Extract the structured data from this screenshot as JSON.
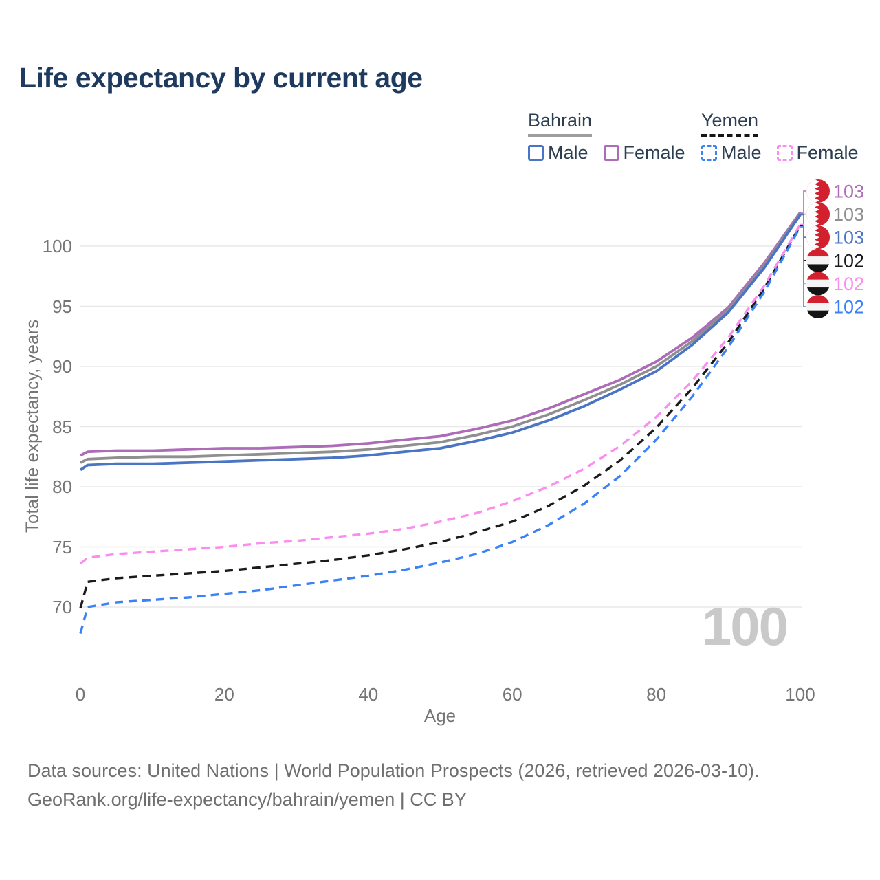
{
  "title": "Life expectancy by current age",
  "legend": {
    "groups": [
      {
        "name": "Bahrain",
        "line_style": "solid",
        "underline_color": "#9e9e9e",
        "items": [
          {
            "label": "Male",
            "color": "#4a74c4"
          },
          {
            "label": "Female",
            "color": "#ad6cb8"
          }
        ]
      },
      {
        "name": "Yemen",
        "line_style": "dashed",
        "underline_color": "#151515",
        "items": [
          {
            "label": "Male",
            "color": "#3b82f6"
          },
          {
            "label": "Female",
            "color": "#fb8cf0"
          }
        ]
      }
    ]
  },
  "axes": {
    "x": {
      "label": "Age",
      "ticks": [
        0,
        20,
        40,
        60,
        80,
        100
      ]
    },
    "y": {
      "label": "Total life expectancy, years",
      "ticks": [
        70,
        75,
        80,
        85,
        90,
        95,
        100
      ]
    }
  },
  "watermark": "100",
  "chart_data": {
    "type": "line",
    "title": "Life expectancy by current age",
    "xlabel": "Age",
    "ylabel": "Total life expectancy, years",
    "xlim": [
      0,
      100
    ],
    "ylim": [
      67,
      104
    ],
    "grid": "horizontal",
    "x": [
      0,
      1,
      5,
      10,
      15,
      20,
      25,
      30,
      35,
      40,
      45,
      50,
      55,
      60,
      65,
      70,
      75,
      80,
      85,
      90,
      95,
      100
    ],
    "series": [
      {
        "name": "Bahrain Female",
        "country": "Bahrain",
        "color": "#ad6cb8",
        "dashed": false,
        "end_label": "103",
        "values": [
          82.6,
          82.9,
          83.0,
          83.0,
          83.1,
          83.2,
          83.2,
          83.3,
          83.4,
          83.6,
          83.9,
          84.2,
          84.8,
          85.5,
          86.5,
          87.7,
          88.9,
          90.4,
          92.4,
          94.9,
          98.6,
          102.8
        ]
      },
      {
        "name": "Bahrain Both sexes",
        "country": "Bahrain",
        "color": "#8f8f8f",
        "dashed": false,
        "end_label": "103",
        "values": [
          82.0,
          82.3,
          82.4,
          82.5,
          82.5,
          82.6,
          82.7,
          82.8,
          82.9,
          83.1,
          83.4,
          83.7,
          84.3,
          85.0,
          86.0,
          87.2,
          88.5,
          90.0,
          92.1,
          94.7,
          98.4,
          102.7
        ]
      },
      {
        "name": "Bahrain Male",
        "country": "Bahrain",
        "color": "#4a74c4",
        "dashed": false,
        "end_label": "103",
        "values": [
          81.4,
          81.8,
          81.9,
          81.9,
          82.0,
          82.1,
          82.2,
          82.3,
          82.4,
          82.6,
          82.9,
          83.2,
          83.8,
          84.5,
          85.5,
          86.7,
          88.1,
          89.6,
          91.8,
          94.5,
          98.2,
          102.6
        ]
      },
      {
        "name": "Yemen Both sexes",
        "country": "Yemen",
        "color": "#1b1b1b",
        "dashed": true,
        "end_label": "102",
        "values": [
          69.9,
          72.1,
          72.4,
          72.6,
          72.8,
          73.0,
          73.3,
          73.6,
          73.9,
          74.3,
          74.8,
          75.4,
          76.2,
          77.1,
          78.4,
          80.1,
          82.2,
          84.9,
          88.2,
          92.0,
          96.5,
          101.7
        ]
      },
      {
        "name": "Yemen Female",
        "country": "Yemen",
        "color": "#fb8cf0",
        "dashed": true,
        "end_label": "102",
        "values": [
          73.6,
          74.1,
          74.4,
          74.6,
          74.8,
          75.0,
          75.3,
          75.5,
          75.8,
          76.1,
          76.5,
          77.1,
          77.8,
          78.8,
          80.0,
          81.5,
          83.4,
          85.8,
          88.8,
          92.4,
          96.7,
          101.8
        ]
      },
      {
        "name": "Yemen Male",
        "country": "Yemen",
        "color": "#3b82f6",
        "dashed": true,
        "end_label": "102",
        "values": [
          67.8,
          70.0,
          70.4,
          70.6,
          70.8,
          71.1,
          71.4,
          71.8,
          72.2,
          72.6,
          73.1,
          73.7,
          74.4,
          75.4,
          76.8,
          78.6,
          80.9,
          83.9,
          87.5,
          91.6,
          96.2,
          101.6
        ]
      }
    ]
  },
  "colors": {
    "title_text": "#1e3a5f",
    "legend_text": "#2c3e50",
    "axis_text": "#757575",
    "gridline": "#e8e8e8",
    "watermark": "#c9c9c9",
    "flag_red": "#d2202e",
    "flag_white": "#f4f4f4",
    "flag_black": "#141414"
  },
  "footer": {
    "line1": "Data sources: United Nations | World Population Prospects (2026, retrieved 2026-03-10).",
    "line2": "GeoRank.org/life-expectancy/bahrain/yemen | CC BY"
  }
}
